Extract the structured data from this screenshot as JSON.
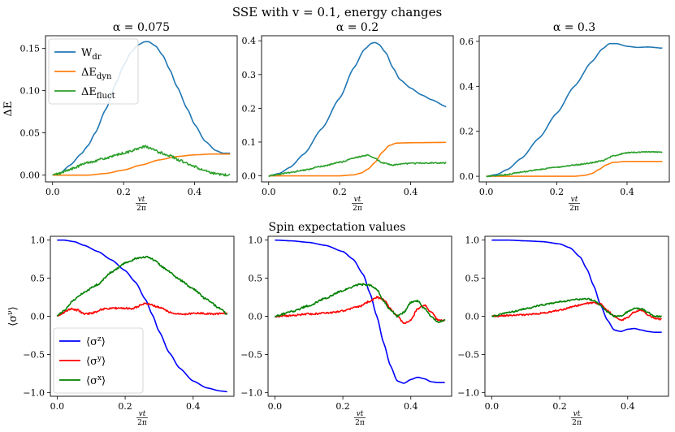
{
  "figure": {
    "suptitle": "SSE with v = 0.1, energy changes",
    "row2_title": "Spin expectation values"
  },
  "colors": {
    "W_dr": "#1f77b4",
    "dE_dyn": "#ff7f0e",
    "dE_fluct": "#2ca02c",
    "sz": "#0000ff",
    "sy": "#ff0000",
    "sx": "#008000"
  },
  "chart_data": [
    {
      "type": "line",
      "title": "α = 0.075",
      "xlabel": "vt/2π",
      "ylabel": "ΔE",
      "xlim": [
        -0.02,
        0.52
      ],
      "ylim": [
        -0.008,
        0.165
      ],
      "xticks": [
        0.0,
        0.2,
        0.4
      ],
      "xtick_labels": [
        "0.0",
        "0.2",
        "0.4"
      ],
      "yticks": [
        0.0,
        0.05,
        0.1,
        0.15
      ],
      "ytick_labels": [
        "0.00",
        "0.05",
        "0.10",
        "0.15"
      ],
      "legend": {
        "position": "top-left",
        "entries": [
          "W_dr",
          "ΔE_dyn",
          "ΔE_fluct"
        ]
      },
      "series": [
        {
          "name": "W_dr",
          "color_key": "W_dr",
          "noise": 0,
          "x": [
            0.0,
            0.02,
            0.05,
            0.08,
            0.1,
            0.12,
            0.15,
            0.18,
            0.2,
            0.22,
            0.24,
            0.26,
            0.27,
            0.29,
            0.31,
            0.33,
            0.35,
            0.38,
            0.4,
            0.43,
            0.46,
            0.48,
            0.5
          ],
          "y": [
            0.0,
            0.002,
            0.012,
            0.025,
            0.035,
            0.05,
            0.078,
            0.11,
            0.13,
            0.145,
            0.154,
            0.158,
            0.158,
            0.153,
            0.142,
            0.125,
            0.105,
            0.078,
            0.06,
            0.04,
            0.029,
            0.026,
            0.026
          ]
        },
        {
          "name": "ΔE_dyn",
          "color_key": "dE_dyn",
          "noise": 0,
          "x": [
            0.0,
            0.1,
            0.15,
            0.2,
            0.25,
            0.3,
            0.35,
            0.4,
            0.45,
            0.5
          ],
          "y": [
            0.0,
            0.0,
            0.002,
            0.006,
            0.012,
            0.018,
            0.022,
            0.024,
            0.025,
            0.025
          ]
        },
        {
          "name": "ΔE_fluct",
          "color_key": "dE_fluct",
          "noise": 0.0014,
          "x": [
            0.0,
            0.02,
            0.05,
            0.1,
            0.15,
            0.2,
            0.24,
            0.26,
            0.28,
            0.3,
            0.33,
            0.36,
            0.4,
            0.43,
            0.45,
            0.47,
            0.5
          ],
          "y": [
            0.0,
            0.002,
            0.007,
            0.015,
            0.02,
            0.026,
            0.031,
            0.034,
            0.031,
            0.027,
            0.023,
            0.017,
            0.01,
            0.005,
            0.002,
            0.001,
            0.0
          ]
        }
      ]
    },
    {
      "type": "line",
      "title": "α = 0.2",
      "xlabel": "vt/2π",
      "ylabel": "",
      "xlim": [
        -0.02,
        0.52
      ],
      "ylim": [
        -0.018,
        0.415
      ],
      "xticks": [
        0.0,
        0.2,
        0.4
      ],
      "xtick_labels": [
        "0.0",
        "0.2",
        "0.4"
      ],
      "yticks": [
        0.0,
        0.1,
        0.2,
        0.3,
        0.4
      ],
      "ytick_labels": [
        "0.0",
        "0.1",
        "0.2",
        "0.3",
        "0.4"
      ],
      "series": [
        {
          "name": "W_dr",
          "color_key": "W_dr",
          "noise": 0,
          "x": [
            0.0,
            0.03,
            0.06,
            0.1,
            0.15,
            0.2,
            0.24,
            0.27,
            0.29,
            0.3,
            0.31,
            0.33,
            0.35,
            0.37,
            0.4,
            0.43,
            0.46,
            0.5
          ],
          "y": [
            0.0,
            0.007,
            0.025,
            0.065,
            0.14,
            0.23,
            0.32,
            0.375,
            0.393,
            0.395,
            0.39,
            0.365,
            0.32,
            0.285,
            0.26,
            0.24,
            0.225,
            0.205
          ]
        },
        {
          "name": "ΔE_dyn",
          "color_key": "dE_dyn",
          "noise": 0,
          "x": [
            0.0,
            0.2,
            0.24,
            0.26,
            0.28,
            0.3,
            0.32,
            0.34,
            0.36,
            0.4,
            0.5
          ],
          "y": [
            0.0,
            0.0,
            0.003,
            0.008,
            0.02,
            0.04,
            0.07,
            0.09,
            0.097,
            0.098,
            0.099
          ]
        },
        {
          "name": "ΔE_fluct",
          "color_key": "dE_fluct",
          "noise": 0.0018,
          "x": [
            0.0,
            0.05,
            0.1,
            0.15,
            0.2,
            0.25,
            0.28,
            0.3,
            0.32,
            0.35,
            0.4,
            0.45,
            0.5
          ],
          "y": [
            0.0,
            0.008,
            0.017,
            0.028,
            0.04,
            0.055,
            0.062,
            0.052,
            0.038,
            0.032,
            0.037,
            0.038,
            0.038
          ]
        }
      ]
    },
    {
      "type": "line",
      "title": "α = 0.3",
      "xlabel": "vt/2π",
      "ylabel": "",
      "xlim": [
        -0.02,
        0.52
      ],
      "ylim": [
        -0.025,
        0.625
      ],
      "xticks": [
        0.0,
        0.2,
        0.4
      ],
      "xtick_labels": [
        "0.0",
        "0.2",
        "0.4"
      ],
      "yticks": [
        0.0,
        0.2,
        0.4,
        0.6
      ],
      "ytick_labels": [
        "0.0",
        "0.2",
        "0.4",
        "0.6"
      ],
      "series": [
        {
          "name": "W_dr",
          "color_key": "W_dr",
          "noise": 0,
          "x": [
            0.0,
            0.03,
            0.06,
            0.1,
            0.15,
            0.2,
            0.25,
            0.3,
            0.33,
            0.35,
            0.37,
            0.4,
            0.43,
            0.46,
            0.5
          ],
          "y": [
            0.0,
            0.008,
            0.03,
            0.08,
            0.17,
            0.28,
            0.4,
            0.51,
            0.567,
            0.59,
            0.59,
            0.578,
            0.573,
            0.575,
            0.57
          ]
        },
        {
          "name": "ΔE_dyn",
          "color_key": "dE_dyn",
          "noise": 0,
          "x": [
            0.0,
            0.25,
            0.28,
            0.3,
            0.32,
            0.34,
            0.36,
            0.4,
            0.5
          ],
          "y": [
            0.0,
            0.0,
            0.004,
            0.012,
            0.03,
            0.05,
            0.062,
            0.066,
            0.066
          ]
        },
        {
          "name": "ΔE_fluct",
          "color_key": "dE_fluct",
          "noise": 0.0025,
          "x": [
            0.0,
            0.05,
            0.1,
            0.15,
            0.2,
            0.25,
            0.3,
            0.33,
            0.36,
            0.4,
            0.45,
            0.5
          ],
          "y": [
            0.0,
            0.006,
            0.018,
            0.03,
            0.04,
            0.05,
            0.06,
            0.07,
            0.09,
            0.105,
            0.108,
            0.108
          ]
        }
      ]
    },
    {
      "type": "line",
      "title": "",
      "xlabel": "vt/2π",
      "ylabel": "⟨σ^ν⟩",
      "xlim": [
        -0.02,
        0.52
      ],
      "ylim": [
        -1.05,
        1.05
      ],
      "xticks": [
        0.0,
        0.2,
        0.4
      ],
      "xtick_labels": [
        "0.0",
        "0.2",
        "0.4"
      ],
      "yticks": [
        -1.0,
        -0.5,
        0.0,
        0.5,
        1.0
      ],
      "ytick_labels": [
        "−1.0",
        "−0.5",
        "0.0",
        "0.5",
        "1.0"
      ],
      "legend": {
        "position": "bottom-left",
        "entries": [
          "⟨σ^z⟩",
          "⟨σ^y⟩",
          "⟨σ^x⟩"
        ]
      },
      "series": [
        {
          "name": "⟨σ^z⟩",
          "color_key": "sz",
          "noise": 0,
          "x": [
            0.0,
            0.02,
            0.05,
            0.08,
            0.12,
            0.16,
            0.2,
            0.23,
            0.26,
            0.28,
            0.3,
            0.33,
            0.36,
            0.4,
            0.44,
            0.48,
            0.5
          ],
          "y": [
            1.0,
            1.0,
            0.98,
            0.93,
            0.85,
            0.74,
            0.6,
            0.45,
            0.22,
            0.02,
            -0.2,
            -0.48,
            -0.68,
            -0.85,
            -0.94,
            -0.98,
            -0.99
          ]
        },
        {
          "name": "⟨σ^y⟩",
          "color_key": "sy",
          "noise": 0.012,
          "x": [
            0.0,
            0.02,
            0.04,
            0.06,
            0.08,
            0.1,
            0.14,
            0.18,
            0.22,
            0.26,
            0.3,
            0.34,
            0.38,
            0.42,
            0.46,
            0.5
          ],
          "y": [
            0.0,
            0.05,
            0.1,
            0.08,
            0.03,
            0.04,
            0.1,
            0.11,
            0.1,
            0.17,
            0.12,
            0.04,
            0.03,
            0.04,
            0.03,
            0.04
          ]
        },
        {
          "name": "⟨σ^x⟩",
          "color_key": "sx",
          "noise": 0.012,
          "x": [
            0.0,
            0.02,
            0.05,
            0.08,
            0.12,
            0.16,
            0.2,
            0.24,
            0.26,
            0.28,
            0.32,
            0.36,
            0.4,
            0.44,
            0.48,
            0.5
          ],
          "y": [
            0.0,
            0.08,
            0.22,
            0.32,
            0.42,
            0.58,
            0.7,
            0.77,
            0.78,
            0.75,
            0.62,
            0.48,
            0.36,
            0.22,
            0.1,
            0.03
          ]
        }
      ]
    },
    {
      "type": "line",
      "title": "",
      "xlabel": "vt/2π",
      "ylabel": "",
      "xlim": [
        -0.02,
        0.52
      ],
      "ylim": [
        -1.05,
        1.05
      ],
      "xticks": [
        0.0,
        0.2,
        0.4
      ],
      "xtick_labels": [
        "0.0",
        "0.2",
        "0.4"
      ],
      "yticks": [
        -1.0,
        -0.5,
        0.0,
        0.5,
        1.0
      ],
      "ytick_labels": [
        "−1.0",
        "−0.5",
        "0.0",
        "0.5",
        "1.0"
      ],
      "series": [
        {
          "name": "⟨σ^z⟩",
          "color_key": "sz",
          "noise": 0,
          "x": [
            0.0,
            0.05,
            0.1,
            0.15,
            0.2,
            0.23,
            0.26,
            0.28,
            0.3,
            0.32,
            0.34,
            0.36,
            0.38,
            0.4,
            0.42,
            0.44,
            0.46,
            0.48,
            0.5
          ],
          "y": [
            1.0,
            0.99,
            0.97,
            0.93,
            0.85,
            0.75,
            0.55,
            0.3,
            0.0,
            -0.35,
            -0.65,
            -0.85,
            -0.88,
            -0.83,
            -0.8,
            -0.82,
            -0.86,
            -0.87,
            -0.87
          ]
        },
        {
          "name": "⟨σ^y⟩",
          "color_key": "sy",
          "noise": 0.012,
          "x": [
            0.0,
            0.05,
            0.1,
            0.15,
            0.2,
            0.25,
            0.28,
            0.3,
            0.32,
            0.34,
            0.36,
            0.38,
            0.4,
            0.42,
            0.44,
            0.46,
            0.48,
            0.5
          ],
          "y": [
            0.0,
            0.01,
            0.03,
            0.04,
            0.07,
            0.13,
            0.2,
            0.25,
            0.22,
            0.1,
            0.0,
            -0.1,
            -0.05,
            0.1,
            0.15,
            0.05,
            -0.05,
            -0.05
          ]
        },
        {
          "name": "⟨σ^x⟩",
          "color_key": "sx",
          "noise": 0.012,
          "x": [
            0.0,
            0.05,
            0.1,
            0.15,
            0.2,
            0.25,
            0.28,
            0.3,
            0.32,
            0.34,
            0.36,
            0.38,
            0.4,
            0.42,
            0.44,
            0.46,
            0.48,
            0.5
          ],
          "y": [
            0.0,
            0.06,
            0.14,
            0.24,
            0.34,
            0.42,
            0.41,
            0.35,
            0.2,
            0.08,
            0.0,
            0.05,
            0.18,
            0.2,
            0.1,
            0.0,
            -0.08,
            -0.05
          ]
        }
      ]
    },
    {
      "type": "line",
      "title": "",
      "xlabel": "vt/2π",
      "ylabel": "",
      "xlim": [
        -0.02,
        0.52
      ],
      "ylim": [
        -1.05,
        1.05
      ],
      "xticks": [
        0.0,
        0.2,
        0.4
      ],
      "xtick_labels": [
        "0.0",
        "0.2",
        "0.4"
      ],
      "yticks": [
        -1.0,
        -0.5,
        0.0,
        0.5,
        1.0
      ],
      "ytick_labels": [
        "−1.0",
        "−0.5",
        "0.0",
        "0.5",
        "1.0"
      ],
      "series": [
        {
          "name": "⟨σ^z⟩",
          "color_key": "sz",
          "noise": 0,
          "x": [
            0.0,
            0.05,
            0.1,
            0.15,
            0.2,
            0.23,
            0.26,
            0.28,
            0.3,
            0.32,
            0.34,
            0.36,
            0.38,
            0.4,
            0.42,
            0.44,
            0.46,
            0.48,
            0.5
          ],
          "y": [
            1.0,
            1.0,
            0.99,
            0.98,
            0.95,
            0.9,
            0.78,
            0.62,
            0.4,
            0.15,
            -0.05,
            -0.18,
            -0.2,
            -0.17,
            -0.16,
            -0.18,
            -0.2,
            -0.21,
            -0.21
          ]
        },
        {
          "name": "⟨σ^y⟩",
          "color_key": "sy",
          "noise": 0.01,
          "x": [
            0.0,
            0.1,
            0.15,
            0.2,
            0.25,
            0.28,
            0.3,
            0.32,
            0.34,
            0.36,
            0.38,
            0.4,
            0.42,
            0.44,
            0.46,
            0.48,
            0.5
          ],
          "y": [
            0.0,
            0.02,
            0.04,
            0.08,
            0.14,
            0.17,
            0.18,
            0.16,
            0.08,
            0.0,
            -0.05,
            -0.02,
            0.06,
            0.08,
            0.02,
            -0.03,
            -0.04
          ]
        },
        {
          "name": "⟨σ^x⟩",
          "color_key": "sx",
          "noise": 0.01,
          "x": [
            0.0,
            0.05,
            0.1,
            0.15,
            0.2,
            0.25,
            0.28,
            0.3,
            0.32,
            0.34,
            0.36,
            0.38,
            0.4,
            0.42,
            0.44,
            0.46,
            0.48,
            0.5
          ],
          "y": [
            0.0,
            0.05,
            0.1,
            0.15,
            0.19,
            0.22,
            0.23,
            0.21,
            0.15,
            0.06,
            0.0,
            0.0,
            0.06,
            0.1,
            0.1,
            0.05,
            0.0,
            0.0
          ]
        }
      ]
    }
  ]
}
